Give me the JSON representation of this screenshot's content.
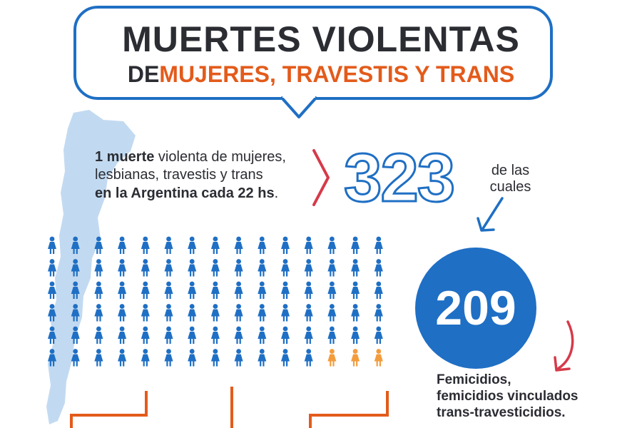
{
  "title": {
    "line1": "MUERTES VIOLENTAS",
    "line2_prefix": "DE",
    "line2_highlight": "MUJERES, TRAVESTIS Y TRANS"
  },
  "intro": {
    "bold1": "1 muerte",
    "text1": " violenta de mujeres,",
    "text2": "lesbianas, travestis y trans",
    "bold2": "en la Argentina cada 22 hs",
    "text3": "."
  },
  "total": {
    "number": "323",
    "caption_line1": "de las",
    "caption_line2": "cuales"
  },
  "femicides": {
    "number": "209",
    "lines": [
      "Femicidios,",
      "femicidios vinculados",
      "trans-travesticidios."
    ]
  },
  "icon_grid": {
    "icon": "woman-figure-icon",
    "columns": 15,
    "rows": 6,
    "highlight_count": 3
  },
  "colors": {
    "blue": "#1f6fc4",
    "orange": "#e35b1b",
    "light_orange": "#f39c3d",
    "dark_text": "#2b2d33",
    "red_arrow": "#d63a4a",
    "map_blue": "#b7d4ee"
  }
}
